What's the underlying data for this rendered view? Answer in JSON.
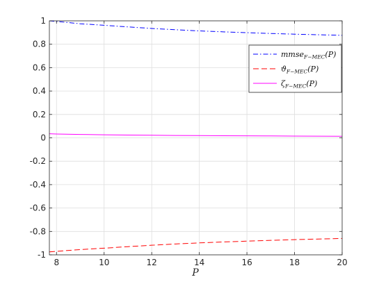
{
  "chart_data": {
    "type": "line",
    "xlabel": "P",
    "ylabel": "",
    "xlim": [
      7.7,
      20
    ],
    "ylim": [
      -1,
      1
    ],
    "x_ticks": [
      8,
      10,
      12,
      14,
      16,
      18,
      20
    ],
    "x_tick_labels": [
      "8",
      "10",
      "12",
      "14",
      "16",
      "18",
      "20"
    ],
    "y_ticks": [
      1,
      0.8,
      0.6,
      0.4,
      0.2,
      0,
      -0.2,
      -0.4,
      -0.6,
      -0.8,
      -1
    ],
    "y_tick_labels": [
      "1",
      "0.8",
      "0.6",
      "0.4",
      "0.2",
      "0",
      "-0.2",
      "-0.4",
      "-0.6",
      "-0.8",
      "-1"
    ],
    "grid": true,
    "legend_position": "top-right",
    "series": [
      {
        "name": "mmse_{F-MEC}(P)",
        "legend_main": "mmse",
        "legend_sub": "F−MEC",
        "legend_tail": "(P)",
        "color": "#0000ff",
        "style": "dash-dot",
        "x": [
          7.7,
          8,
          9,
          10,
          11,
          12,
          13,
          14,
          15,
          16,
          17,
          18,
          19,
          20
        ],
        "values": [
          1.0,
          0.995,
          0.975,
          0.962,
          0.948,
          0.935,
          0.924,
          0.914,
          0.906,
          0.899,
          0.892,
          0.886,
          0.881,
          0.876
        ]
      },
      {
        "name": "ϑ_{F-MEC}(P)",
        "legend_main": "ϑ",
        "legend_sub": "F−MEC",
        "legend_tail": "(P)",
        "color": "#ff0000",
        "style": "dashed",
        "x": [
          7.7,
          8,
          9,
          10,
          11,
          12,
          13,
          14,
          15,
          16,
          17,
          18,
          19,
          20
        ],
        "values": [
          -0.975,
          -0.97,
          -0.955,
          -0.943,
          -0.93,
          -0.918,
          -0.907,
          -0.898,
          -0.89,
          -0.883,
          -0.876,
          -0.87,
          -0.865,
          -0.86
        ]
      },
      {
        "name": "ζ_{F-MEC}(P)",
        "legend_main": "ζ",
        "legend_sub": "F−MEC",
        "legend_tail": "(P)",
        "color": "#ff00ff",
        "style": "solid",
        "x": [
          7.7,
          8,
          9,
          10,
          11,
          12,
          13,
          14,
          15,
          16,
          17,
          18,
          19,
          20
        ],
        "values": [
          0.035,
          0.033,
          0.029,
          0.026,
          0.024,
          0.022,
          0.02,
          0.019,
          0.018,
          0.017,
          0.016,
          0.015,
          0.014,
          0.013
        ]
      }
    ]
  }
}
